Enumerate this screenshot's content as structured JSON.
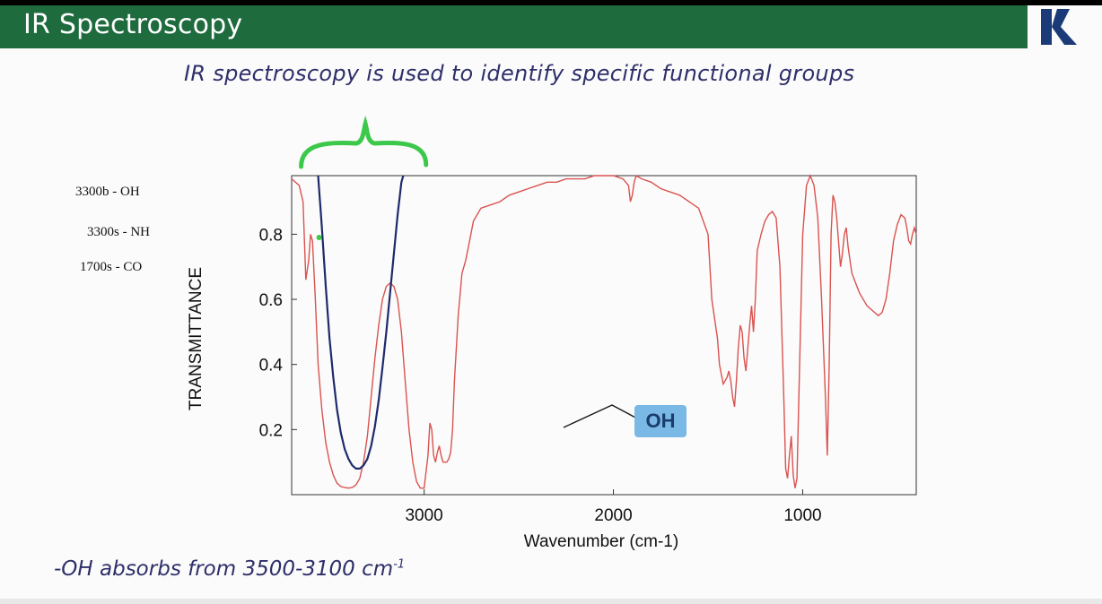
{
  "slide": {
    "title": "IR Spectroscopy",
    "subtitle": "IR spectroscopy is used to identify specific functional groups",
    "notes": [
      "3300b - OH",
      "3300s - NH",
      "1700s - CO"
    ],
    "footer": "-OH absorbs from 3500-3100 cm",
    "footer_sup": "-1",
    "molecule_label": "OH",
    "logo_icon": "k-logo-icon"
  },
  "colors": {
    "header_green": "#1e6b3e",
    "spectrum": "#d9534f",
    "annotation_navy": "#1f2a6b",
    "brace_green": "#3cc84a",
    "logo_navy": "#1b3a78"
  },
  "chart_data": {
    "type": "line",
    "xlabel": "Wavenumber (cm-1)",
    "ylabel": "TRANSMITTANCE",
    "xlim": [
      3700,
      400
    ],
    "ylim": [
      0,
      0.98
    ],
    "x_reversed": true,
    "xticks": [
      3000,
      2000,
      1000
    ],
    "yticks": [
      0.2,
      0.4,
      0.6,
      0.8
    ],
    "grid": false,
    "series": [
      {
        "x": [
          3700,
          3660,
          3640,
          3625,
          3610,
          3600,
          3590,
          3575,
          3560,
          3540,
          3520,
          3500,
          3480,
          3460,
          3440,
          3420,
          3400,
          3380,
          3360,
          3340,
          3320,
          3300,
          3280,
          3260,
          3240,
          3220,
          3200,
          3180,
          3160,
          3140,
          3120,
          3100,
          3080,
          3060,
          3040,
          3020,
          3000,
          2980,
          2970,
          2960,
          2950,
          2940,
          2930,
          2920,
          2910,
          2900,
          2890,
          2880,
          2870,
          2860,
          2850,
          2840,
          2820,
          2800,
          2780,
          2760,
          2740,
          2700,
          2650,
          2600,
          2550,
          2500,
          2450,
          2400,
          2350,
          2300,
          2250,
          2200,
          2150,
          2100,
          2050,
          2000,
          1950,
          1920,
          1910,
          1900,
          1890,
          1880,
          1850,
          1800,
          1750,
          1700,
          1650,
          1600,
          1550,
          1500,
          1480,
          1460,
          1450,
          1440,
          1420,
          1400,
          1390,
          1380,
          1370,
          1360,
          1350,
          1340,
          1330,
          1320,
          1310,
          1300,
          1290,
          1280,
          1270,
          1260,
          1250,
          1240,
          1220,
          1200,
          1180,
          1160,
          1140,
          1120,
          1100,
          1090,
          1080,
          1070,
          1060,
          1050,
          1040,
          1030,
          1020,
          1000,
          980,
          960,
          940,
          920,
          900,
          880,
          870,
          860,
          850,
          840,
          830,
          820,
          800,
          790,
          780,
          770,
          760,
          740,
          700,
          660,
          620,
          600,
          580,
          560,
          540,
          520,
          500,
          480,
          460,
          450,
          440,
          430,
          420,
          410,
          400
        ],
        "y": [
          0.97,
          0.95,
          0.9,
          0.66,
          0.72,
          0.8,
          0.78,
          0.6,
          0.4,
          0.26,
          0.16,
          0.1,
          0.06,
          0.035,
          0.025,
          0.022,
          0.02,
          0.022,
          0.03,
          0.05,
          0.1,
          0.18,
          0.3,
          0.42,
          0.52,
          0.6,
          0.64,
          0.65,
          0.64,
          0.6,
          0.5,
          0.35,
          0.2,
          0.1,
          0.04,
          0.02,
          0.02,
          0.12,
          0.22,
          0.2,
          0.12,
          0.1,
          0.13,
          0.15,
          0.12,
          0.1,
          0.1,
          0.1,
          0.11,
          0.13,
          0.2,
          0.35,
          0.55,
          0.68,
          0.72,
          0.78,
          0.84,
          0.88,
          0.89,
          0.9,
          0.92,
          0.93,
          0.94,
          0.95,
          0.96,
          0.96,
          0.97,
          0.97,
          0.97,
          0.98,
          0.98,
          0.98,
          0.97,
          0.95,
          0.9,
          0.92,
          0.96,
          0.98,
          0.97,
          0.96,
          0.94,
          0.93,
          0.92,
          0.9,
          0.88,
          0.8,
          0.6,
          0.52,
          0.48,
          0.4,
          0.34,
          0.36,
          0.38,
          0.35,
          0.3,
          0.27,
          0.35,
          0.45,
          0.52,
          0.5,
          0.42,
          0.38,
          0.45,
          0.52,
          0.58,
          0.5,
          0.6,
          0.75,
          0.8,
          0.84,
          0.86,
          0.87,
          0.85,
          0.7,
          0.3,
          0.08,
          0.05,
          0.12,
          0.18,
          0.06,
          0.02,
          0.05,
          0.3,
          0.8,
          0.95,
          0.98,
          0.95,
          0.85,
          0.6,
          0.3,
          0.12,
          0.4,
          0.8,
          0.92,
          0.9,
          0.85,
          0.7,
          0.74,
          0.8,
          0.82,
          0.76,
          0.68,
          0.62,
          0.58,
          0.56,
          0.55,
          0.56,
          0.6,
          0.68,
          0.78,
          0.83,
          0.86,
          0.85,
          0.82,
          0.78,
          0.77,
          0.8,
          0.82,
          0.8
        ]
      }
    ],
    "annotation_curve": {
      "x": [
        3560,
        3550,
        3540,
        3520,
        3500,
        3480,
        3460,
        3440,
        3420,
        3400,
        3380,
        3360,
        3340,
        3320,
        3300,
        3280,
        3260,
        3240,
        3220,
        3200,
        3180,
        3160,
        3140,
        3120,
        3110
      ],
      "y": [
        0.98,
        0.9,
        0.82,
        0.64,
        0.48,
        0.36,
        0.26,
        0.19,
        0.14,
        0.11,
        0.09,
        0.08,
        0.08,
        0.09,
        0.11,
        0.15,
        0.21,
        0.29,
        0.39,
        0.5,
        0.62,
        0.74,
        0.86,
        0.96,
        0.98
      ]
    },
    "brace_range": [
      3650,
      2990
    ],
    "marker_point": {
      "x": 3555,
      "y": 0.79
    }
  }
}
